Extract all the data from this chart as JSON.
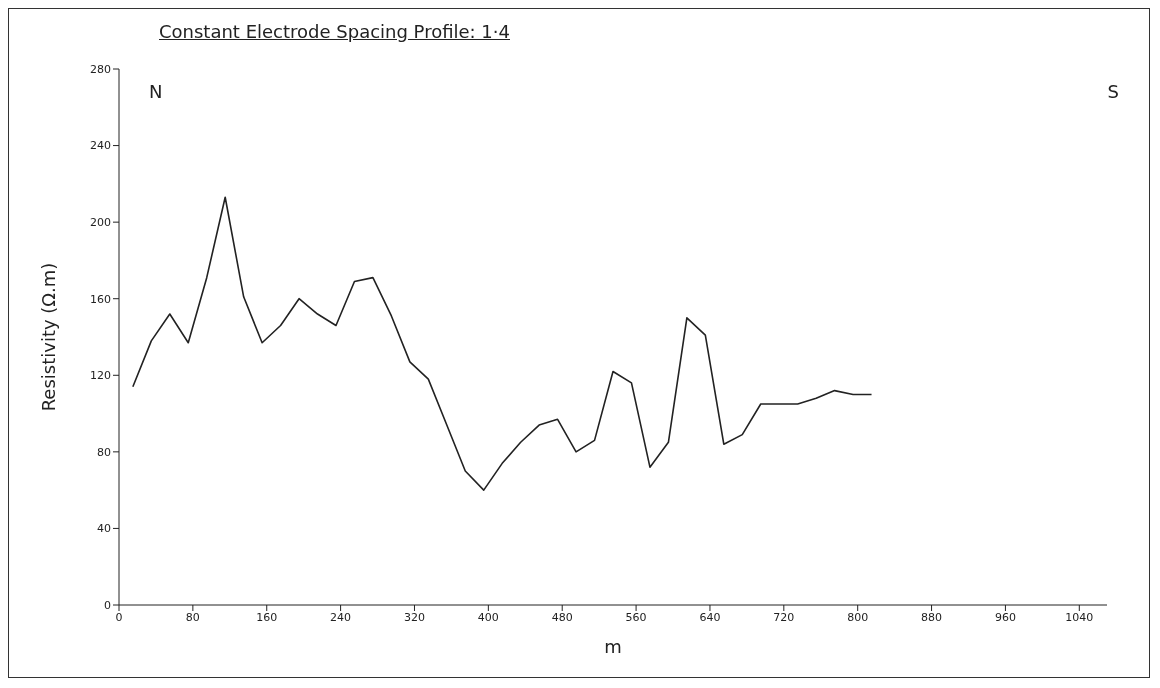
{
  "chart_data": {
    "type": "line",
    "title": "Constant Electrode Spacing Profile: 1·4",
    "xlabel": "m",
    "ylabel": "Resistivity (Ω.m)",
    "annotations": [
      "N",
      "S"
    ],
    "x": [
      15,
      35,
      55,
      75,
      95,
      115,
      135,
      155,
      175,
      195,
      215,
      235,
      255,
      275,
      295,
      315,
      335,
      355,
      375,
      395,
      415,
      435,
      455,
      475,
      495,
      515,
      535,
      555,
      575,
      595,
      615,
      635,
      655,
      675,
      695,
      715,
      735,
      755,
      775,
      795,
      815
    ],
    "series": [
      {
        "color": "#222222",
        "values": [
          114,
          138,
          152,
          137,
          171,
          213,
          161,
          137,
          146,
          160,
          152,
          146,
          169,
          171,
          151,
          127,
          118,
          94,
          70,
          60,
          74,
          85,
          94,
          97,
          80,
          86,
          122,
          116,
          72,
          85,
          150,
          141,
          84,
          89,
          105,
          105,
          105,
          108,
          112,
          110,
          110
        ]
      }
    ],
    "xlim": [
      0,
      1070
    ],
    "xticks": [
      0,
      80,
      160,
      240,
      320,
      400,
      480,
      560,
      640,
      720,
      800,
      880,
      960,
      1040
    ],
    "ylim": [
      0,
      280
    ],
    "yticks": [
      0,
      40,
      80,
      120,
      160,
      200,
      240,
      280
    ],
    "grid": false,
    "legend": false,
    "marker": "none",
    "line_style": "solid"
  }
}
